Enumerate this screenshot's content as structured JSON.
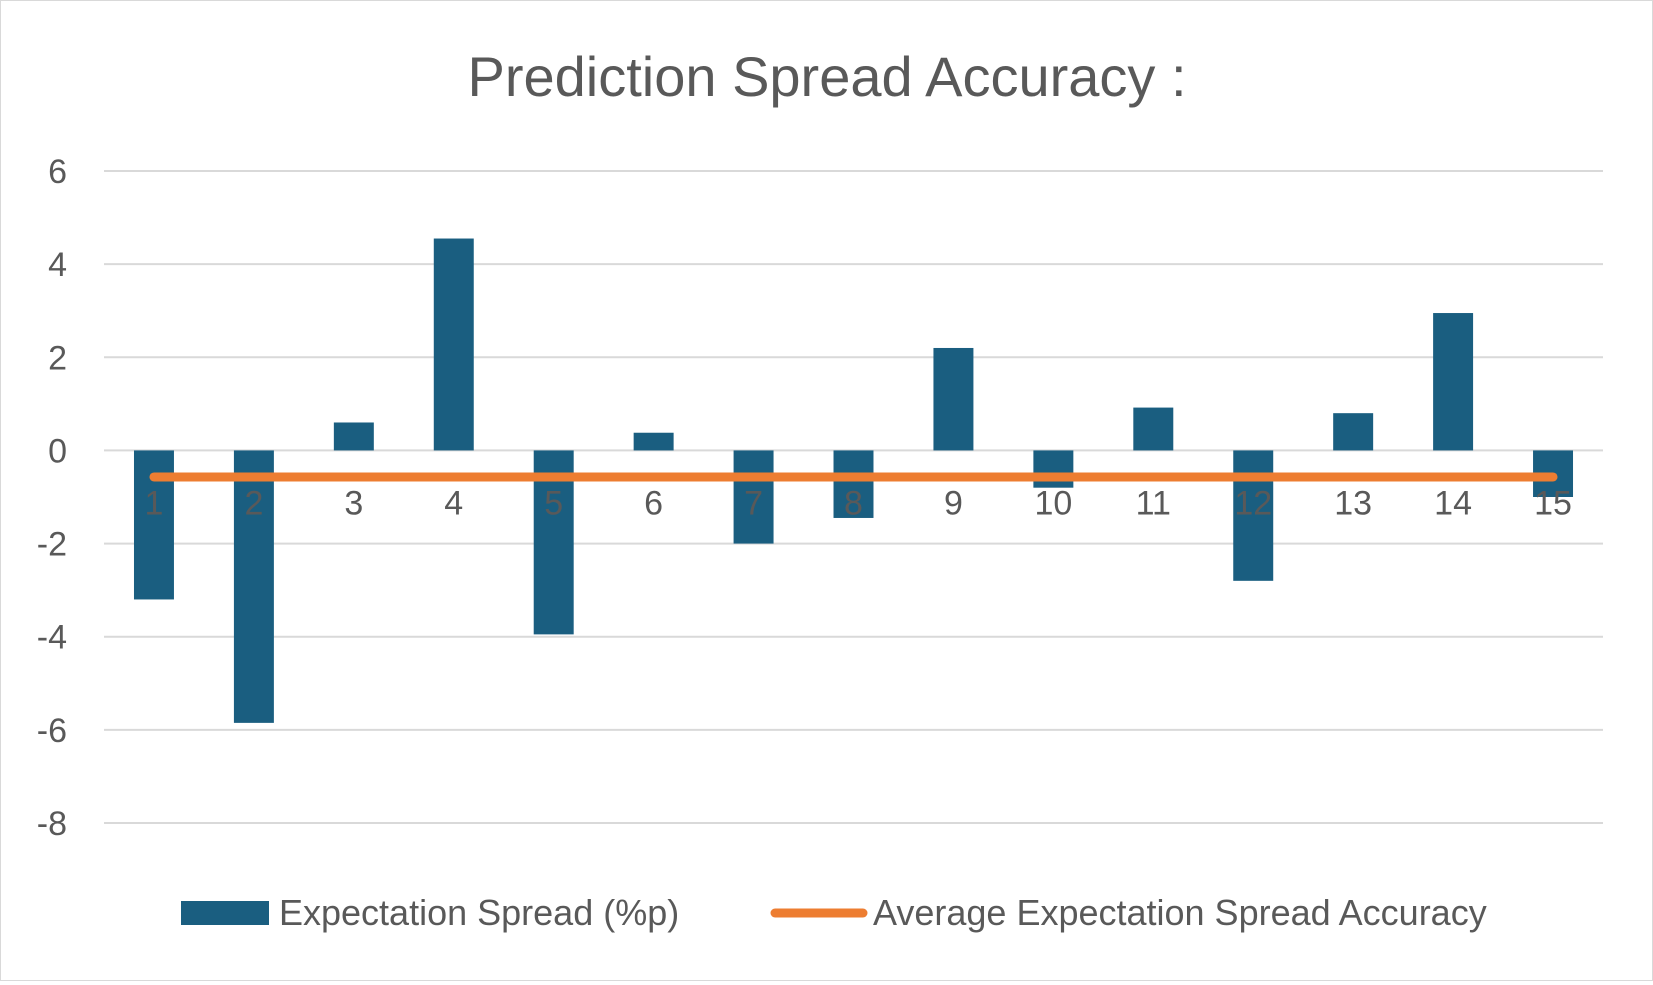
{
  "chart_data": {
    "type": "bar",
    "title": "Prediction Spread Accuracy :",
    "xlabel": "",
    "ylabel": "",
    "categories": [
      "1",
      "2",
      "3",
      "4",
      "5",
      "6",
      "7",
      "8",
      "9",
      "10",
      "11",
      "12",
      "13",
      "14",
      "15"
    ],
    "series": [
      {
        "name": "Expectation Spread (%p)",
        "type": "bar",
        "color": "#1a5e80",
        "values": [
          -3.2,
          -5.85,
          0.6,
          4.55,
          -3.95,
          0.38,
          -2.0,
          -1.45,
          2.2,
          -0.8,
          0.92,
          -2.8,
          0.8,
          2.95,
          -1.0
        ]
      },
      {
        "name": "Average Expectation Spread Accuracy",
        "type": "line",
        "color": "#ed7d31",
        "values": [
          -0.57,
          -0.57,
          -0.57,
          -0.57,
          -0.57,
          -0.57,
          -0.57,
          -0.57,
          -0.57,
          -0.57,
          -0.57,
          -0.57,
          -0.57,
          -0.57,
          -0.57
        ]
      }
    ],
    "ylim": [
      -8,
      6
    ],
    "yticks": [
      6,
      4,
      2,
      0,
      -2,
      -4,
      -6,
      -8
    ],
    "grid": true,
    "legend_position": "bottom"
  }
}
